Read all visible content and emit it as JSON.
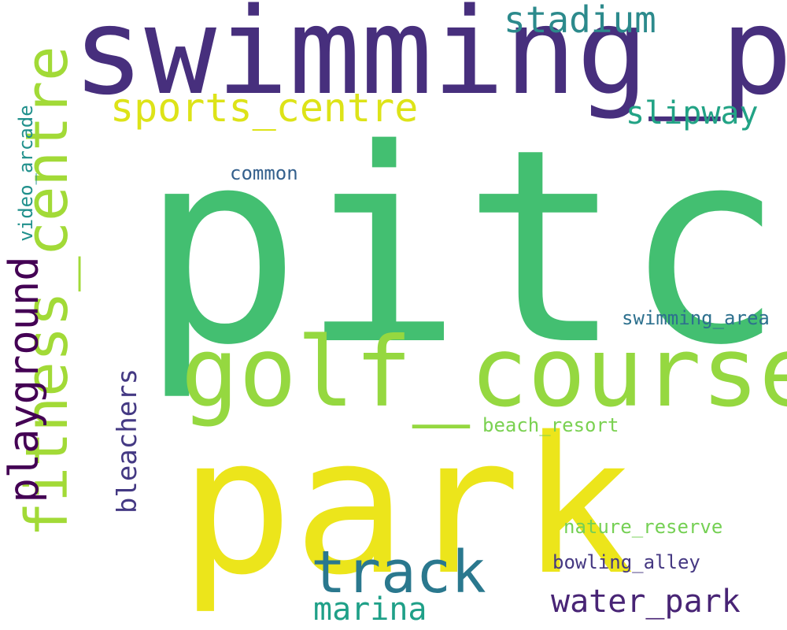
{
  "words": [
    {
      "text": "pitch",
      "color": "#43bf71"
    },
    {
      "text": "swimming_pool",
      "color": "#472f7d"
    },
    {
      "text": "park",
      "color": "#ece51b"
    },
    {
      "text": "golf_course",
      "color": "#95d840"
    },
    {
      "text": "fitness_centre",
      "color": "#a2da37"
    },
    {
      "text": "track",
      "color": "#2a788e"
    },
    {
      "text": "playground",
      "color": "#440154"
    },
    {
      "text": "sports_centre",
      "color": "#dde318"
    },
    {
      "text": "stadium",
      "color": "#2c8a8c"
    },
    {
      "text": "slipway",
      "color": "#22a385"
    },
    {
      "text": "water_park",
      "color": "#482475"
    },
    {
      "text": "marina",
      "color": "#1fa088"
    },
    {
      "text": "bleachers",
      "color": "#443983"
    },
    {
      "text": "video_arcade",
      "color": "#20908c"
    },
    {
      "text": "common",
      "color": "#34608d"
    },
    {
      "text": "swimming_area",
      "color": "#2d708e"
    },
    {
      "text": "beach_resort",
      "color": "#7ad151"
    },
    {
      "text": "nature_reserve",
      "color": "#75d054"
    },
    {
      "text": "bowling_alley",
      "color": "#453882"
    }
  ]
}
